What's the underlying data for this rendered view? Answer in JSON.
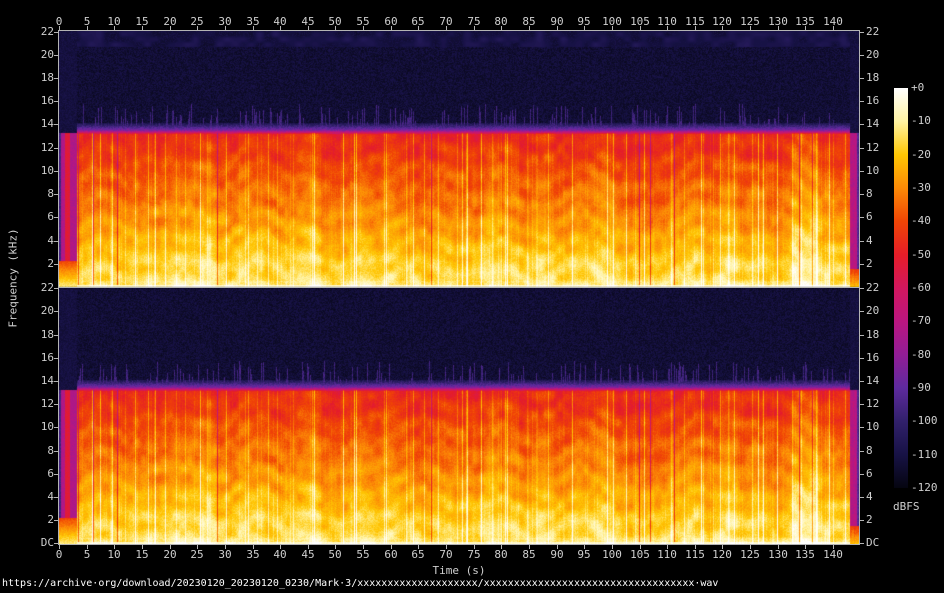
{
  "figure": {
    "footer_url": "https://archive·org/download/20230120_20230120_0230/Mark·3/xxxxxxxxxxxxxxxxxxxx/xxxxxxxxxxxxxxxxxxxxxxxxxxxxxxxxxxx·wav",
    "time_axis": {
      "label": "Time (s)",
      "ticks": [
        0,
        5,
        10,
        15,
        20,
        25,
        30,
        35,
        40,
        45,
        50,
        55,
        60,
        65,
        70,
        75,
        80,
        85,
        90,
        95,
        100,
        105,
        110,
        115,
        120,
        125,
        130,
        135,
        140
      ],
      "duration_s": 144.7
    },
    "freq_axis": {
      "label": "Frequency (kHz)",
      "ticks_khz": [
        22,
        20,
        18,
        16,
        14,
        12,
        10,
        8,
        6,
        4,
        2
      ],
      "dc_label": "DC",
      "max_khz": 22.05
    },
    "channels": [
      "channel-1-top",
      "channel-2-bottom"
    ],
    "colorbar": {
      "unit": "dBFS",
      "labels": [
        "+0",
        "-10",
        "-20",
        "-30",
        "-40",
        "-50",
        "-60",
        "-70",
        "-80",
        "-90",
        "-100",
        "-110",
        "-120"
      ],
      "palette": [
        {
          "db": 0,
          "color": "#ffffff"
        },
        {
          "db": -10,
          "color": "#fff3a3"
        },
        {
          "db": -20,
          "color": "#ffc703"
        },
        {
          "db": -30,
          "color": "#fc8a06"
        },
        {
          "db": -40,
          "color": "#f04505"
        },
        {
          "db": -50,
          "color": "#e51d28"
        },
        {
          "db": -60,
          "color": "#d2175e"
        },
        {
          "db": -70,
          "color": "#bb1680"
        },
        {
          "db": -80,
          "color": "#921d96"
        },
        {
          "db": -90,
          "color": "#5e2a9e"
        },
        {
          "db": -100,
          "color": "#31206b"
        },
        {
          "db": -110,
          "color": "#171245"
        },
        {
          "db": -120,
          "color": "#050510"
        }
      ]
    }
  },
  "chart_data": {
    "type": "heatmap",
    "subtype": "audio-spectrogram-stereo",
    "title": "https://archive·org/download/20230120_20230120_0230/Mark·3/xxxxxxxxxxxxxxxxxxxx/xxxxxxxxxxxxxxxxxxxxxxxxxxxxxxxxxxx·wav",
    "xlabel": "Time (s)",
    "ylabel": "Frequency (kHz)",
    "x_range_s": [
      0,
      144.7
    ],
    "x_ticks_s": [
      0,
      5,
      10,
      15,
      20,
      25,
      30,
      35,
      40,
      45,
      50,
      55,
      60,
      65,
      70,
      75,
      80,
      85,
      90,
      95,
      100,
      105,
      110,
      115,
      120,
      125,
      130,
      135,
      140
    ],
    "y_range_khz_per_channel": [
      0,
      22.05
    ],
    "y_ticks_khz": [
      22,
      20,
      18,
      16,
      14,
      12,
      10,
      8,
      6,
      4,
      2,
      "DC"
    ],
    "n_channels": 2,
    "color_scale": {
      "unit": "dBFS",
      "range_db": [
        -120,
        0
      ],
      "tick_labels": [
        "+0",
        "-10",
        "-20",
        "-30",
        "-40",
        "-50",
        "-60",
        "-70",
        "-80",
        "-90",
        "-100",
        "-110",
        "-120"
      ],
      "legend_position": "right"
    },
    "content_features": {
      "broadband_body_db_by_freq": [
        {
          "freq_khz": 0.1,
          "level_db": -5
        },
        {
          "freq_khz": 1,
          "level_db": -15
        },
        {
          "freq_khz": 3,
          "level_db": -20
        },
        {
          "freq_khz": 6,
          "level_db": -28
        },
        {
          "freq_khz": 10,
          "level_db": -38
        },
        {
          "freq_khz": 13,
          "level_db": -46
        },
        {
          "freq_khz": 13.5,
          "level_db": -84
        },
        {
          "freq_khz": 15,
          "level_db": -113
        },
        {
          "freq_khz": 22,
          "level_db": -116
        }
      ],
      "lowpass_cutoff_khz": 13.3,
      "intro_quiet_purple_band_s": [
        0.3,
        3.1
      ],
      "outro_quiet_purple_band_s": [
        142.9,
        144.5
      ],
      "brighter_segment_s": [
        132.5,
        137.2
      ],
      "hf_transient_spikes": "narrow vertical spikes above cutoff in both channels; channel 2 has several full-height spikes between ~63 s and ~124 s",
      "dc_floor": "bright near-0 dB line at DC along entire duration"
    }
  }
}
